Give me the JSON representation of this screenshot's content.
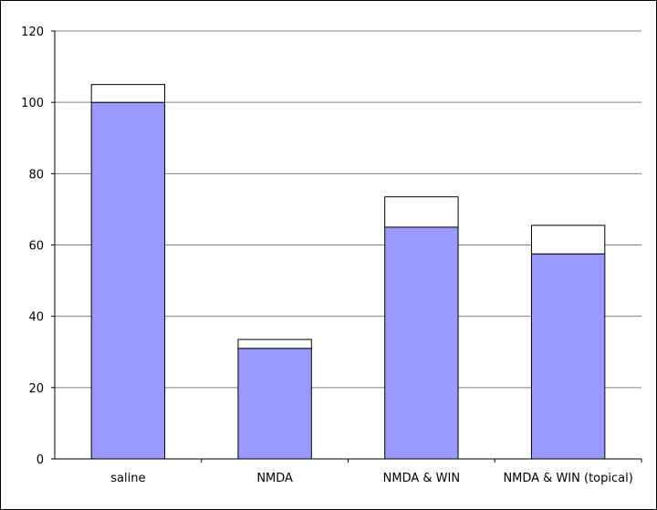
{
  "chart_data": {
    "type": "bar",
    "stacked": true,
    "title": "",
    "xlabel": "",
    "ylabel": "",
    "categories": [
      "saline",
      "NMDA",
      "NMDA & WIN",
      "NMDA & WIN (topical)"
    ],
    "series": [
      {
        "values": [
          100,
          31,
          65,
          57.5
        ],
        "color": "#9999ff"
      },
      {
        "values": [
          5,
          2.5,
          8.5,
          8
        ],
        "color": "#ffffff"
      }
    ],
    "ylim": [
      0,
      120
    ],
    "yticks": [
      "0",
      "20",
      "40",
      "60",
      "80",
      "100",
      "120"
    ],
    "grid": true,
    "legend": "none"
  }
}
